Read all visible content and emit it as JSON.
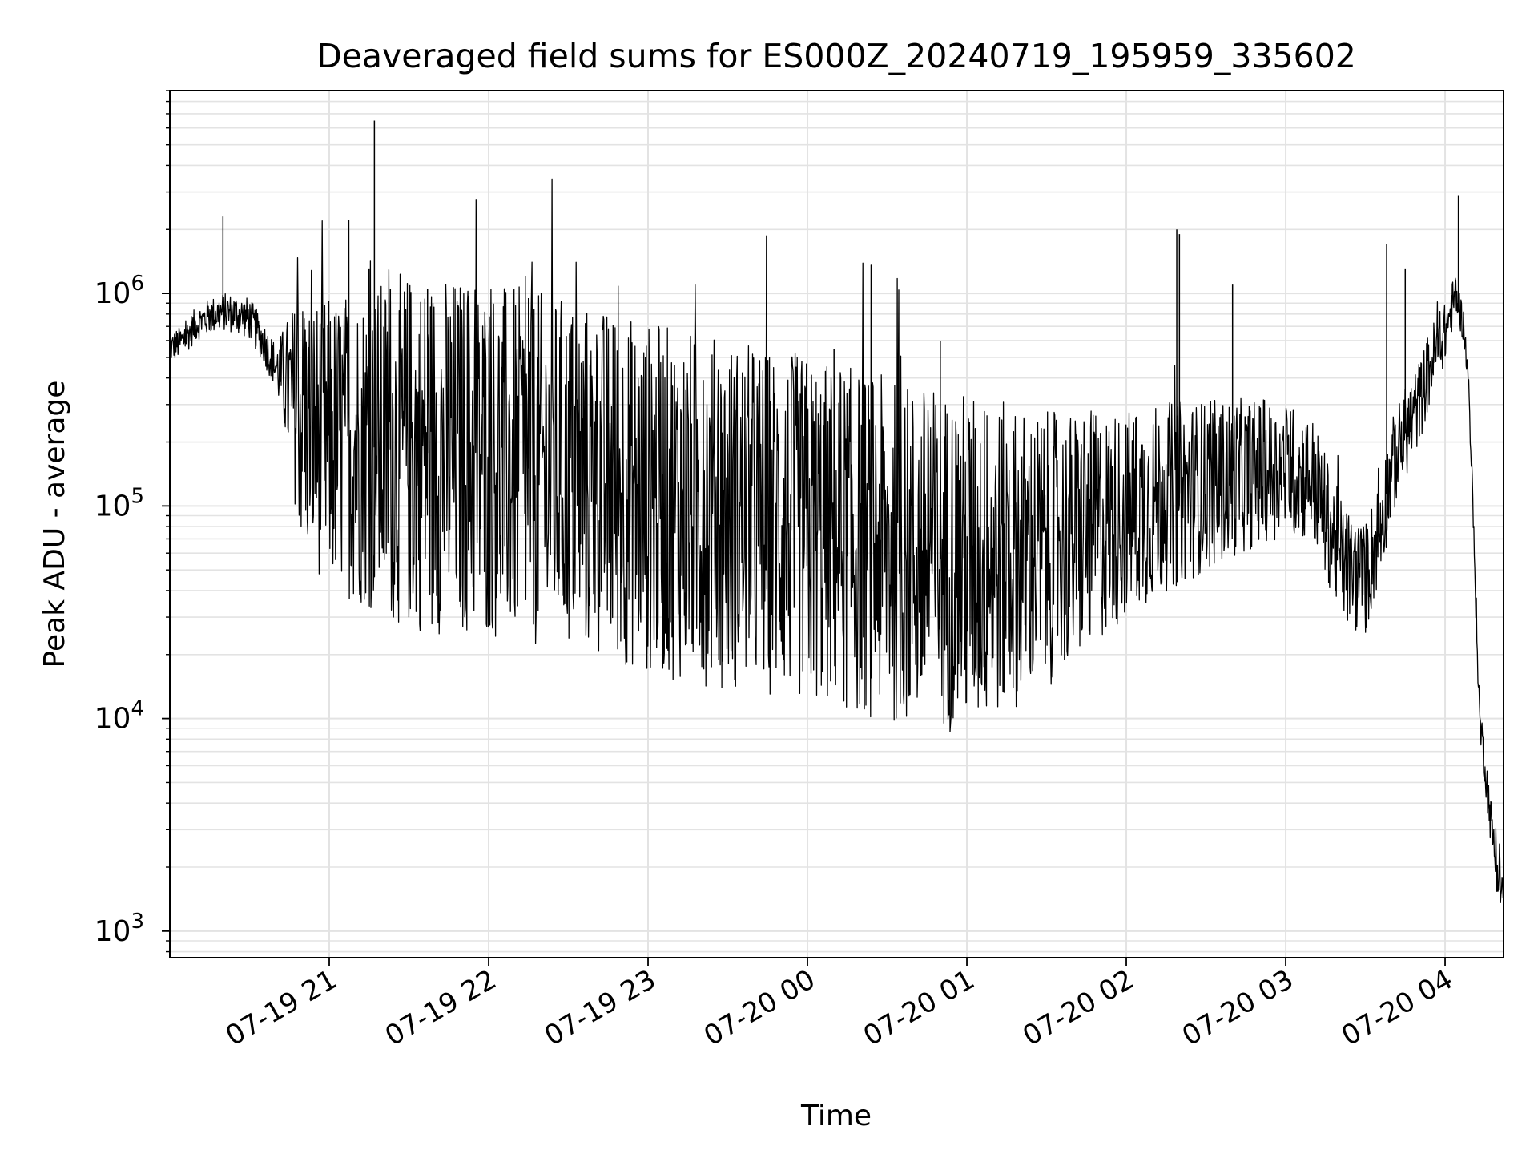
{
  "chart_data": {
    "type": "line",
    "title": "Deaveraged field sums for ES000Z_20240719_195959_335602",
    "xlabel": "Time",
    "ylabel": "Peak ADU - average",
    "yscale": "log",
    "xlim": [
      "2024-07-19 20:00",
      "2024-07-20 04:22"
    ],
    "ylim": [
      750,
      9000000
    ],
    "grid": true,
    "x_ticks": [
      {
        "value": "2024-07-19 21:00",
        "label": "07-19 21"
      },
      {
        "value": "2024-07-19 22:00",
        "label": "07-19 22"
      },
      {
        "value": "2024-07-19 23:00",
        "label": "07-19 23"
      },
      {
        "value": "2024-07-20 00:00",
        "label": "07-20 00"
      },
      {
        "value": "2024-07-20 01:00",
        "label": "07-20 01"
      },
      {
        "value": "2024-07-20 02:00",
        "label": "07-20 02"
      },
      {
        "value": "2024-07-20 03:00",
        "label": "07-20 03"
      },
      {
        "value": "2024-07-20 04:00",
        "label": "07-20 04"
      }
    ],
    "y_ticks": [
      {
        "value": 1000,
        "base": "10",
        "exp": "3"
      },
      {
        "value": 10000,
        "base": "10",
        "exp": "4"
      },
      {
        "value": 100000,
        "base": "10",
        "exp": "5"
      },
      {
        "value": 1000000,
        "base": "10",
        "exp": "6"
      }
    ],
    "series_color": "#000000",
    "series": [
      {
        "name": "",
        "points": [
          [
            "2024-07-19 20:00",
            550000
          ],
          [
            "2024-07-19 20:05",
            600000
          ],
          [
            "2024-07-19 20:10",
            720000
          ],
          [
            "2024-07-19 20:15",
            780000
          ],
          [
            "2024-07-19 20:20",
            820000
          ],
          [
            "2024-07-19 20:25",
            800000
          ],
          [
            "2024-07-19 20:30",
            760000
          ],
          [
            "2024-07-19 20:35",
            600000
          ],
          [
            "2024-07-19 20:40",
            450000
          ],
          [
            "2024-07-19 20:45",
            350000
          ],
          [
            "2024-07-19 20:50",
            250000
          ],
          [
            "2024-07-19 20:55",
            220000
          ],
          [
            "2024-07-19 21:00",
            200000
          ],
          [
            "2024-07-19 21:15",
            190000
          ],
          [
            "2024-07-19 21:30",
            180000
          ],
          [
            "2024-07-19 21:45",
            175000
          ],
          [
            "2024-07-19 22:00",
            165000
          ],
          [
            "2024-07-19 22:15",
            150000
          ],
          [
            "2024-07-19 22:30",
            140000
          ],
          [
            "2024-07-19 22:45",
            125000
          ],
          [
            "2024-07-19 23:00",
            110000
          ],
          [
            "2024-07-19 23:15",
            100000
          ],
          [
            "2024-07-19 23:30",
            92000
          ],
          [
            "2024-07-19 23:45",
            85000
          ],
          [
            "2024-07-20 00:00",
            78000
          ],
          [
            "2024-07-20 00:15",
            70000
          ],
          [
            "2024-07-20 00:30",
            62000
          ],
          [
            "2024-07-20 00:45",
            57000
          ],
          [
            "2024-07-20 01:00",
            55000
          ],
          [
            "2024-07-20 01:15",
            57000
          ],
          [
            "2024-07-20 01:30",
            62000
          ],
          [
            "2024-07-20 01:45",
            75000
          ],
          [
            "2024-07-20 02:00",
            92000
          ],
          [
            "2024-07-20 02:15",
            110000
          ],
          [
            "2024-07-20 02:30",
            125000
          ],
          [
            "2024-07-20 02:45",
            140000
          ],
          [
            "2024-07-20 03:00",
            150000
          ],
          [
            "2024-07-20 03:10",
            135000
          ],
          [
            "2024-07-20 03:20",
            60000
          ],
          [
            "2024-07-20 03:25",
            48000
          ],
          [
            "2024-07-20 03:30",
            45000
          ],
          [
            "2024-07-20 03:35",
            75000
          ],
          [
            "2024-07-20 03:40",
            150000
          ],
          [
            "2024-07-20 03:45",
            220000
          ],
          [
            "2024-07-20 03:50",
            300000
          ],
          [
            "2024-07-20 03:55",
            480000
          ],
          [
            "2024-07-20 04:00",
            650000
          ],
          [
            "2024-07-20 04:04",
            1000000
          ],
          [
            "2024-07-20 04:07",
            700000
          ],
          [
            "2024-07-20 04:09",
            350000
          ],
          [
            "2024-07-20 04:11",
            60000
          ],
          [
            "2024-07-20 04:13",
            10000
          ],
          [
            "2024-07-20 04:15",
            6000
          ],
          [
            "2024-07-20 04:17",
            3500
          ],
          [
            "2024-07-20 04:19",
            2200
          ],
          [
            "2024-07-20 04:21",
            1600
          ]
        ],
        "spread": [
          [
            "2024-07-19 20:00",
            0.08
          ],
          [
            "2024-07-19 20:40",
            0.12
          ],
          [
            "2024-07-19 20:50",
            0.7
          ],
          [
            "2024-07-19 21:30",
            0.95
          ],
          [
            "2024-07-20 01:00",
            0.9
          ],
          [
            "2024-07-20 02:00",
            0.55
          ],
          [
            "2024-07-20 03:00",
            0.35
          ],
          [
            "2024-07-20 03:30",
            0.3
          ],
          [
            "2024-07-20 03:55",
            0.2
          ],
          [
            "2024-07-20 04:08",
            0.08
          ],
          [
            "2024-07-20 04:22",
            0.15
          ]
        ],
        "spikes": [
          [
            "2024-07-19 20:20",
            2300000
          ],
          [
            "2024-07-19 21:15",
            1300000
          ],
          [
            "2024-07-19 21:17",
            6500000
          ],
          [
            "2024-07-19 21:23",
            1050000
          ],
          [
            "2024-07-19 21:37",
            1050000
          ],
          [
            "2024-07-19 22:15",
            950000
          ],
          [
            "2024-07-20 00:10",
            550000
          ],
          [
            "2024-07-20 00:50",
            600000
          ],
          [
            "2024-07-20 02:19",
            2000000
          ],
          [
            "2024-07-20 02:20",
            1900000
          ],
          [
            "2024-07-20 02:40",
            1100000
          ],
          [
            "2024-07-20 03:38",
            1700000
          ],
          [
            "2024-07-20 03:45",
            1300000
          ],
          [
            "2024-07-20 04:05",
            2900000
          ]
        ]
      }
    ]
  }
}
